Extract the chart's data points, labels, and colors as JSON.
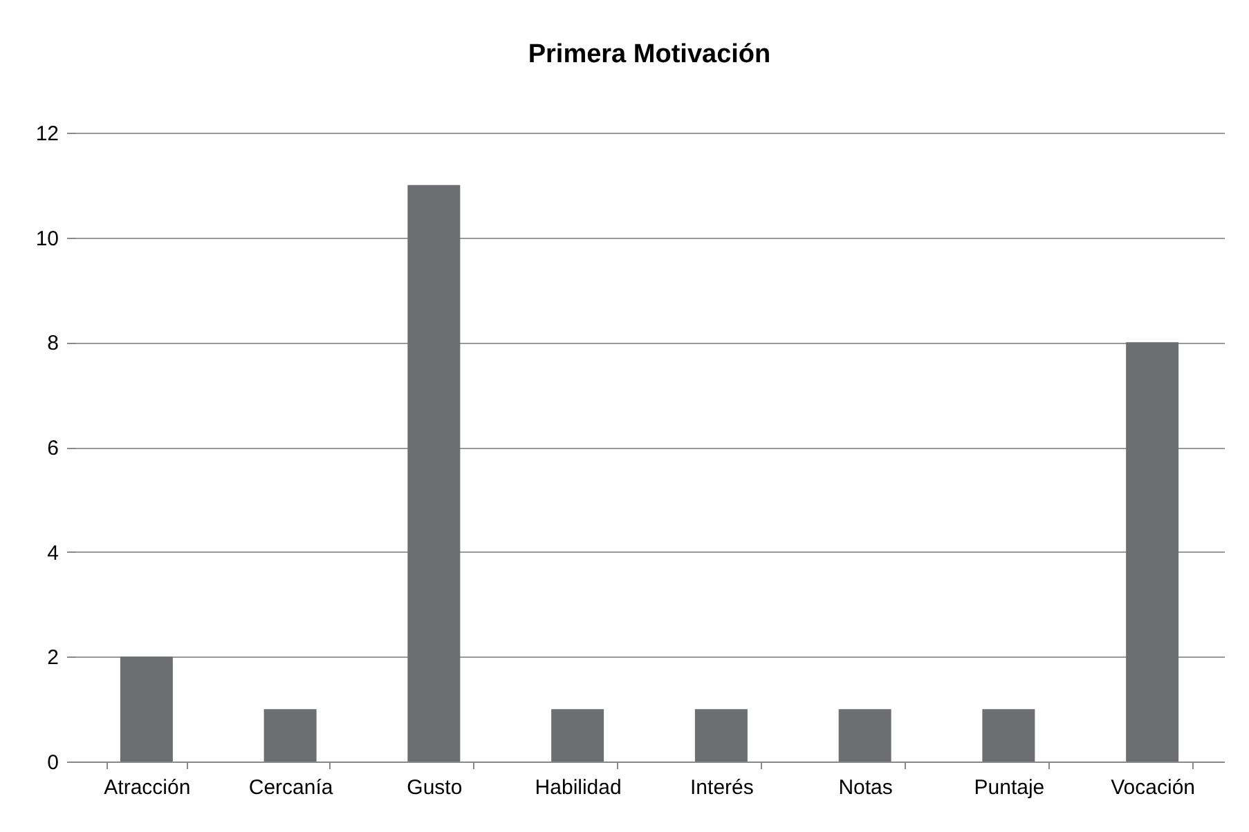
{
  "chart_data": {
    "type": "bar",
    "title": "Primera Motivación",
    "categories": [
      "Atracción",
      "Cercanía",
      "Gusto",
      "Habilidad",
      "Interés",
      "Notas",
      "Puntaje",
      "Vocación"
    ],
    "values": [
      2,
      1,
      11,
      1,
      1,
      1,
      1,
      8
    ],
    "color": "#6d6e71",
    "ylim": [
      0,
      12
    ],
    "yticks": [
      0,
      2,
      4,
      6,
      8,
      10,
      12
    ],
    "grid": "y"
  }
}
